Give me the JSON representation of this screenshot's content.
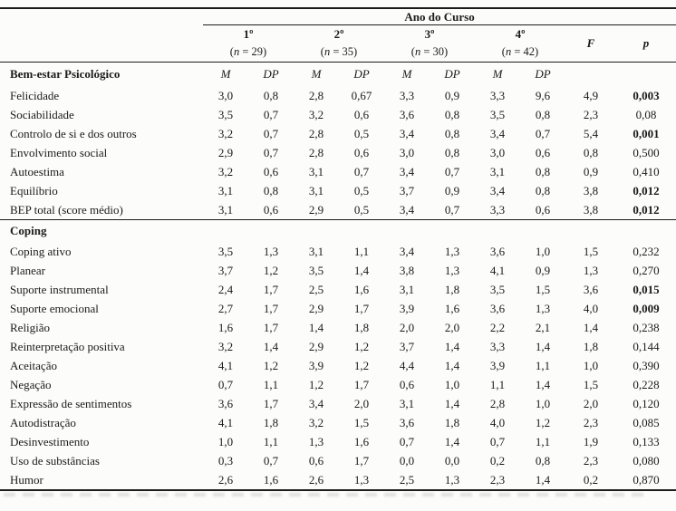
{
  "table": {
    "spanner_title": "Ano do Curso",
    "col_m": "M",
    "col_dp": "DP",
    "col_f": "F",
    "col_p": "p",
    "year_columns": [
      {
        "label": "1º",
        "n_open": "(",
        "n_symbol": "n",
        "n_rest": " = 29)"
      },
      {
        "label": "2º",
        "n_open": "(",
        "n_symbol": "n",
        "n_rest": " = 35)"
      },
      {
        "label": "3º",
        "n_open": "(",
        "n_symbol": "n",
        "n_rest": " = 30)"
      },
      {
        "label": "4º",
        "n_open": "(",
        "n_symbol": "n",
        "n_rest": " = 42)"
      }
    ],
    "sections": [
      {
        "title": "Bem-estar Psicológico",
        "rows": [
          {
            "label": "Felicidade",
            "values": [
              "3,0",
              "0,8",
              "2,8",
              "0,67",
              "3,3",
              "0,9",
              "3,3",
              "9,6"
            ],
            "f": "4,9",
            "p": "0,003",
            "p_bold": true
          },
          {
            "label": "Sociabilidade",
            "values": [
              "3,5",
              "0,7",
              "3,2",
              "0,6",
              "3,6",
              "0,8",
              "3,5",
              "0,8"
            ],
            "f": "2,3",
            "p": "0,08",
            "p_bold": false
          },
          {
            "label": "Controlo de si e dos outros",
            "values": [
              "3,2",
              "0,7",
              "2,8",
              "0,5",
              "3,4",
              "0,8",
              "3,4",
              "0,7"
            ],
            "f": "5,4",
            "p": "0,001",
            "p_bold": true
          },
          {
            "label": "Envolvimento social",
            "values": [
              "2,9",
              "0,7",
              "2,8",
              "0,6",
              "3,0",
              "0,8",
              "3,0",
              "0,6"
            ],
            "f": "0,8",
            "p": "0,500",
            "p_bold": false
          },
          {
            "label": "Autoestima",
            "values": [
              "3,2",
              "0,6",
              "3,1",
              "0,7",
              "3,4",
              "0,7",
              "3,1",
              "0,8"
            ],
            "f": "0,9",
            "p": "0,410",
            "p_bold": false
          },
          {
            "label": "Equilíbrio",
            "values": [
              "3,1",
              "0,8",
              "3,1",
              "0,5",
              "3,7",
              "0,9",
              "3,4",
              "0,8"
            ],
            "f": "3,8",
            "p": "0,012",
            "p_bold": true
          },
          {
            "label": "BEP total (score médio)",
            "values": [
              "3,1",
              "0,6",
              "2,9",
              "0,5",
              "3,4",
              "0,7",
              "3,3",
              "0,6"
            ],
            "f": "3,8",
            "p": "0,012",
            "p_bold": true
          }
        ]
      },
      {
        "title": "Coping",
        "rows": [
          {
            "label": "Coping ativo",
            "values": [
              "3,5",
              "1,3",
              "3,1",
              "1,1",
              "3,4",
              "1,3",
              "3,6",
              "1,0"
            ],
            "f": "1,5",
            "p": "0,232",
            "p_bold": false
          },
          {
            "label": "Planear",
            "values": [
              "3,7",
              "1,2",
              "3,5",
              "1,4",
              "3,8",
              "1,3",
              "4,1",
              "0,9"
            ],
            "f": "1,3",
            "p": "0,270",
            "p_bold": false
          },
          {
            "label": "Suporte instrumental",
            "values": [
              "2,4",
              "1,7",
              "2,5",
              "1,6",
              "3,1",
              "1,8",
              "3,5",
              "1,5"
            ],
            "f": "3,6",
            "p": "0,015",
            "p_bold": true
          },
          {
            "label": "Suporte emocional",
            "values": [
              "2,7",
              "1,7",
              "2,9",
              "1,7",
              "3,9",
              "1,6",
              "3,6",
              "1,3"
            ],
            "f": "4,0",
            "p": "0,009",
            "p_bold": true
          },
          {
            "label": "Religião",
            "values": [
              "1,6",
              "1,7",
              "1,4",
              "1,8",
              "2,0",
              "2,0",
              "2,2",
              "2,1"
            ],
            "f": "1,4",
            "p": "0,238",
            "p_bold": false
          },
          {
            "label": "Reinterpretação positiva",
            "values": [
              "3,2",
              "1,4",
              "2,9",
              "1,2",
              "3,7",
              "1,4",
              "3,3",
              "1,4"
            ],
            "f": "1,8",
            "p": "0,144",
            "p_bold": false
          },
          {
            "label": "Aceitação",
            "values": [
              "4,1",
              "1,2",
              "3,9",
              "1,2",
              "4,4",
              "1,4",
              "3,9",
              "1,1"
            ],
            "f": "1,0",
            "p": "0,390",
            "p_bold": false
          },
          {
            "label": "Negação",
            "values": [
              "0,7",
              "1,1",
              "1,2",
              "1,7",
              "0,6",
              "1,0",
              "1,1",
              "1,4"
            ],
            "f": "1,5",
            "p": "0,228",
            "p_bold": false
          },
          {
            "label": "Expressão de sentimentos",
            "values": [
              "3,6",
              "1,7",
              "3,4",
              "2,0",
              "3,1",
              "1,4",
              "2,8",
              "1,0"
            ],
            "f": "2,0",
            "p": "0,120",
            "p_bold": false
          },
          {
            "label": "Autodistração",
            "values": [
              "4,1",
              "1,8",
              "3,2",
              "1,5",
              "3,6",
              "1,8",
              "4,0",
              "1,2"
            ],
            "f": "2,3",
            "p": "0,085",
            "p_bold": false
          },
          {
            "label": "Desinvestimento",
            "values": [
              "1,0",
              "1,1",
              "1,3",
              "1,6",
              "0,7",
              "1,4",
              "0,7",
              "1,1"
            ],
            "f": "1,9",
            "p": "0,133",
            "p_bold": false
          },
          {
            "label": "Uso de substâncias",
            "values": [
              "0,3",
              "0,7",
              "0,6",
              "1,7",
              "0,0",
              "0,0",
              "0,2",
              "0,8"
            ],
            "f": "2,3",
            "p": "0,080",
            "p_bold": false
          },
          {
            "label": "Humor",
            "values": [
              "2,6",
              "1,6",
              "2,6",
              "1,3",
              "2,5",
              "1,3",
              "2,3",
              "1,4"
            ],
            "f": "0,2",
            "p": "0,870",
            "p_bold": false
          }
        ]
      }
    ],
    "colors": {
      "text": "#1b1b1b",
      "rule": "#1c1c1c",
      "background": "#fcfcfb"
    }
  }
}
